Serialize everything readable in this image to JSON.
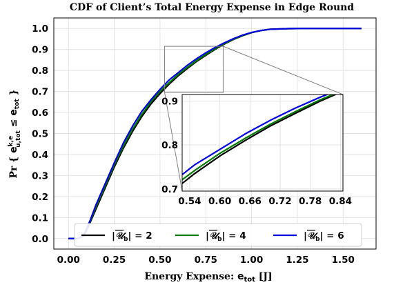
{
  "chart_data": {
    "type": "line",
    "title": "CDF of Client’s Total Energy Expense in Edge Round",
    "xlabel": "Energy Expense: e_tot [J]",
    "ylabel": "Pr { e_u,tot^k,e ≤ e_tot }",
    "xlim": [
      -0.08,
      1.68
    ],
    "ylim": [
      -0.05,
      1.05
    ],
    "xticks": [
      "0.00",
      "0.25",
      "0.50",
      "0.75",
      "1.00",
      "1.25",
      "1.50"
    ],
    "yticks": [
      "0.0",
      "0.1",
      "0.2",
      "0.3",
      "0.4",
      "0.5",
      "0.6",
      "0.7",
      "0.8",
      "0.9",
      "1.0"
    ],
    "grid": true,
    "legend_placement": "bottom-center",
    "series": [
      {
        "name": "|Ū_b| = 2",
        "color": "#000000",
        "x": [
          0.0,
          0.05,
          0.08,
          0.1,
          0.12,
          0.15,
          0.2,
          0.25,
          0.3,
          0.35,
          0.4,
          0.45,
          0.5,
          0.55,
          0.6,
          0.65,
          0.7,
          0.75,
          0.8,
          0.85,
          0.9,
          0.95,
          1.0,
          1.05,
          1.1,
          1.2,
          1.3,
          1.4,
          1.5,
          1.6
        ],
        "y": [
          0.0,
          0.0,
          0.01,
          0.04,
          0.08,
          0.14,
          0.24,
          0.34,
          0.43,
          0.51,
          0.58,
          0.64,
          0.69,
          0.735,
          0.775,
          0.81,
          0.843,
          0.872,
          0.9,
          0.925,
          0.947,
          0.965,
          0.98,
          0.99,
          0.996,
          0.999,
          1.0,
          1.0,
          1.0,
          1.0
        ]
      },
      {
        "name": "|Ū_b| = 4",
        "color": "#007a00",
        "x": [
          0.0,
          0.05,
          0.08,
          0.1,
          0.12,
          0.15,
          0.2,
          0.25,
          0.3,
          0.35,
          0.4,
          0.45,
          0.5,
          0.55,
          0.6,
          0.65,
          0.7,
          0.75,
          0.8,
          0.85,
          0.9,
          0.95,
          1.0,
          1.05,
          1.1,
          1.2,
          1.3,
          1.4,
          1.5,
          1.6
        ],
        "y": [
          0.0,
          0.0,
          0.01,
          0.045,
          0.085,
          0.15,
          0.25,
          0.35,
          0.44,
          0.52,
          0.59,
          0.65,
          0.7,
          0.742,
          0.781,
          0.815,
          0.847,
          0.876,
          0.903,
          0.927,
          0.948,
          0.966,
          0.98,
          0.99,
          0.996,
          0.999,
          1.0,
          1.0,
          1.0,
          1.0
        ]
      },
      {
        "name": "|Ū_b| = 6",
        "color": "#0000e0",
        "x": [
          0.0,
          0.05,
          0.08,
          0.1,
          0.12,
          0.15,
          0.2,
          0.25,
          0.3,
          0.35,
          0.4,
          0.45,
          0.5,
          0.55,
          0.6,
          0.65,
          0.7,
          0.75,
          0.8,
          0.85,
          0.9,
          0.95,
          1.0,
          1.05,
          1.1,
          1.2,
          1.3,
          1.4,
          1.5,
          1.6
        ],
        "y": [
          0.0,
          0.0,
          0.012,
          0.05,
          0.09,
          0.16,
          0.26,
          0.36,
          0.455,
          0.535,
          0.605,
          0.66,
          0.71,
          0.755,
          0.79,
          0.825,
          0.856,
          0.884,
          0.909,
          0.931,
          0.951,
          0.968,
          0.981,
          0.99,
          0.996,
          0.999,
          1.0,
          1.0,
          1.0,
          1.0
        ]
      }
    ],
    "inset": {
      "xlim": [
        0.525,
        0.845
      ],
      "ylim": [
        0.695,
        0.915
      ],
      "xticks": [
        "0.54",
        "0.60",
        "0.66",
        "0.72",
        "0.78",
        "0.84"
      ],
      "yticks": [
        "0.7",
        "0.8",
        "0.9"
      ]
    },
    "legend_labels": [
      {
        "pre": "|",
        "u": "𝒰",
        "sub": "b",
        "post": "| = 2"
      },
      {
        "pre": "|",
        "u": "𝒰",
        "sub": "b",
        "post": "| = 4"
      },
      {
        "pre": "|",
        "u": "𝒰",
        "sub": "b",
        "post": "| = 6"
      }
    ]
  }
}
